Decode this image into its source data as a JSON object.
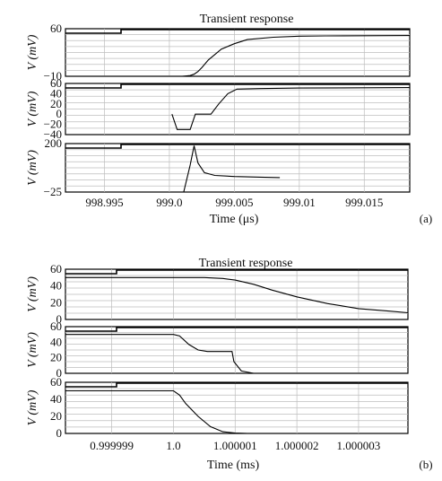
{
  "chart_data": [
    {
      "type": "line",
      "panel_label": "(a)",
      "title": "Transient response",
      "xlabel": "Time (μs)",
      "xlim": [
        998.992,
        999.0185
      ],
      "xticks": [
        998.995,
        999.0,
        999.005,
        999.01,
        999.015
      ],
      "xtick_labels": [
        "998.995",
        "999.0",
        "999.005",
        "999.01",
        "999.015"
      ],
      "subplots": [
        {
          "ylabel": "V (mV)",
          "ylim": [
            -10,
            60
          ],
          "yticks": [
            -10,
            60
          ],
          "ytick_labels": [
            "−10",
            "60"
          ],
          "series": [
            {
              "x": [
                998.992,
                999.001,
                999.0016,
                999.0019,
                999.0022,
                999.0025,
                999.003,
                999.0035,
                999.004,
                999.005,
                999.006,
                999.008,
                999.01,
                999.012,
                999.0185
              ],
              "y": [
                -10,
                -10,
                -9,
                -7,
                -3,
                3,
                14,
                22,
                30,
                38,
                44,
                47.5,
                49,
                49.5,
                50
              ]
            }
          ]
        },
        {
          "ylabel": "V (mV)",
          "ylim": [
            -40,
            60
          ],
          "yticks": [
            -40,
            -20,
            0,
            20,
            40,
            60
          ],
          "ytick_labels": [
            "−40",
            "−20",
            "0",
            "20",
            "40",
            "60"
          ],
          "series": [
            {
              "x": [
                999.0002,
                999.0006,
                999.0016,
                999.002,
                999.0028,
                999.0032,
                999.0038,
                999.0045,
                999.0052,
                999.007,
                999.01,
                999.0185
              ],
              "y": [
                0,
                -30,
                -30,
                0,
                0,
                0,
                20,
                40,
                49,
                50,
                51,
                52
              ]
            }
          ]
        },
        {
          "ylabel": "V (mV)",
          "ylim": [
            -25,
            200
          ],
          "yticks": [
            -25,
            200
          ],
          "ytick_labels": [
            "−25",
            "200"
          ],
          "series": [
            {
              "x": [
                999.0011,
                999.0016,
                999.0019,
                999.0022,
                999.0027,
                999.0035,
                999.005,
                999.007,
                999.0085
              ],
              "y": [
                -25,
                100,
                190,
                110,
                65,
                52,
                47,
                44,
                42
              ]
            }
          ]
        }
      ]
    },
    {
      "type": "line",
      "panel_label": "(b)",
      "title": "Transient response",
      "xlabel": "Time (ms)",
      "xlim": [
        0.99999825,
        1.0000038
      ],
      "xticks": [
        0.999999,
        1.0,
        1.000001,
        1.000002,
        1.000003
      ],
      "xtick_labels": [
        "0.999999",
        "1.0",
        "1.000001",
        "1.000002",
        "1.000003"
      ],
      "subplots": [
        {
          "ylabel": "V (mV)",
          "ylim": [
            0,
            60
          ],
          "yticks": [
            0,
            20,
            40,
            60
          ],
          "ytick_labels": [
            "0",
            "20",
            "40",
            "60"
          ],
          "series": [
            {
              "x": [
                0.99999825,
                1.0,
                1.0000005,
                1.0000008,
                1.000001,
                1.0000013,
                1.0000016,
                1.000002,
                1.0000025,
                1.000003,
                1.0000035,
                1.0000038
              ],
              "y": [
                50,
                50,
                50,
                49,
                47,
                42,
                35,
                27,
                19,
                13,
                10,
                8
              ]
            }
          ]
        },
        {
          "ylabel": "V (mV)",
          "ylim": [
            0,
            60
          ],
          "yticks": [
            0,
            20,
            40,
            60
          ],
          "ytick_labels": [
            "0",
            "20",
            "40",
            "60"
          ],
          "series": [
            {
              "x": [
                0.99999825,
                1.0,
                1.0000001,
                1.00000025,
                1.0000004,
                1.00000055,
                1.00000075,
                1.00000095,
                1.00000098,
                1.0000011,
                1.0000013,
                1.0000038
              ],
              "y": [
                50,
                50,
                48,
                37,
                30,
                28,
                28,
                28,
                15,
                3,
                0,
                0
              ]
            }
          ]
        },
        {
          "ylabel": "V (mV)",
          "ylim": [
            0,
            60
          ],
          "yticks": [
            0,
            20,
            40,
            60
          ],
          "ytick_labels": [
            "0",
            "20",
            "40",
            "60"
          ],
          "series": [
            {
              "x": [
                0.99999825,
                1.0,
                1.0000001,
                1.0000002,
                1.0000004,
                1.0000006,
                1.0000008,
                1.000001,
                1.0000012
              ],
              "y": [
                50,
                50,
                45,
                35,
                20,
                8,
                2,
                0.5,
                0
              ]
            }
          ]
        }
      ]
    }
  ]
}
